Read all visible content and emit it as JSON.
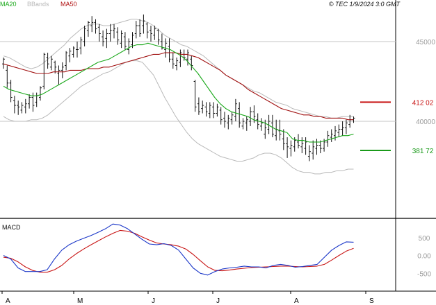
{
  "header": {
    "legend": [
      {
        "label": "MA20",
        "color": "#1aa81a"
      },
      {
        "label": "BBands",
        "color": "#b9b9b9"
      },
      {
        "label": "MA50",
        "color": "#b01010"
      }
    ],
    "copyright": "© TEC 1/9/2024 3:0 GMT"
  },
  "chart_data": [
    {
      "type": "ohlc",
      "panel": "price",
      "x_ticks": [
        "A",
        "M",
        "J",
        "J",
        "A",
        "S"
      ],
      "ylim": [
        34000,
        47000
      ],
      "y_ticks": [
        {
          "value": 40000,
          "label": "40000"
        },
        {
          "value": 45000,
          "label": "45000"
        }
      ],
      "levels": [
        {
          "value": 41202,
          "label": "412 02",
          "color": "#c81414"
        },
        {
          "value": 38172,
          "label": "381 72",
          "color": "#1a9a1a"
        }
      ],
      "series": [
        {
          "name": "MA20",
          "values": [
            42200,
            42000,
            41900,
            41800,
            41700,
            41600,
            41600,
            41700,
            41900,
            42100,
            42300,
            42500,
            42700,
            42900,
            43100,
            43300,
            43500,
            43700,
            43800,
            43900,
            44100,
            44300,
            44500,
            44700,
            44800,
            44800,
            44900,
            44800,
            44700,
            44600,
            44500,
            44300,
            44100,
            43800,
            43400,
            43000,
            42500,
            42000,
            41500,
            41100,
            40800,
            40600,
            40500,
            40400,
            40300,
            40100,
            40000,
            39900,
            39700,
            39500,
            39400,
            39300,
            38900,
            38800,
            38800,
            38700,
            38700,
            38700,
            38800,
            38900,
            39000,
            39100,
            39100,
            39200
          ]
        },
        {
          "name": "MA50",
          "values": [
            43600,
            43500,
            43400,
            43300,
            43200,
            43100,
            43000,
            43000,
            43000,
            43100,
            43100,
            43100,
            43200,
            43200,
            43200,
            43300,
            43300,
            43300,
            43400,
            43400,
            43500,
            43600,
            43700,
            43800,
            43900,
            44000,
            44100,
            44200,
            44200,
            44300,
            44300,
            44300,
            44200,
            44200,
            44100,
            44000,
            43800,
            43600,
            43400,
            43200,
            42900,
            42700,
            42500,
            42300,
            42000,
            41800,
            41600,
            41400,
            41200,
            41000,
            40800,
            40700,
            40600,
            40500,
            40400,
            40400,
            40300,
            40300,
            40200,
            40200,
            40200,
            40200,
            40100,
            40100
          ]
        },
        {
          "name": "BBands upper",
          "values": [
            44100,
            44000,
            43800,
            43600,
            43400,
            43300,
            43400,
            43600,
            43900,
            44200,
            44500,
            44800,
            45200,
            45500,
            45800,
            46000,
            46100,
            46100,
            46000,
            46000,
            46100,
            46200,
            46300,
            46400,
            46400,
            46300,
            46200,
            46000,
            45700,
            45400,
            45200,
            45000,
            44800,
            44700,
            44500,
            44300,
            44100,
            43800,
            43500,
            43200,
            42900,
            42700,
            42500,
            42300,
            42100,
            41900,
            41800,
            41600,
            41400,
            41200,
            41100,
            41000,
            40800,
            40700,
            40600,
            40500,
            40400,
            40300,
            40300,
            40200,
            40200,
            40300,
            40300,
            40300
          ]
        },
        {
          "name": "BBands lower",
          "values": [
            40300,
            40100,
            40000,
            40000,
            40000,
            40100,
            40100,
            40200,
            40400,
            40700,
            41000,
            41300,
            41600,
            41900,
            42200,
            42400,
            42600,
            42800,
            43000,
            43100,
            43300,
            43500,
            43700,
            43800,
            43800,
            43700,
            43300,
            42900,
            42200,
            41500,
            40900,
            40300,
            39800,
            39300,
            38900,
            38600,
            38400,
            38200,
            38000,
            37800,
            37700,
            37600,
            37500,
            37500,
            37600,
            37700,
            37900,
            38000,
            38000,
            37900,
            37700,
            37400,
            37100,
            36900,
            36800,
            36800,
            36700,
            36700,
            36800,
            36800,
            36900,
            36900,
            37000,
            37000
          ]
        }
      ],
      "ohlc": [
        [
          43600,
          44000,
          43300,
          43900
        ],
        [
          43200,
          43500,
          42100,
          42400
        ],
        [
          42400,
          42600,
          41200,
          41500
        ],
        [
          41300,
          41600,
          40500,
          41000
        ],
        [
          41000,
          41300,
          40400,
          40900
        ],
        [
          40700,
          41200,
          40500,
          41000
        ],
        [
          40900,
          41400,
          40500,
          41100
        ],
        [
          41100,
          41700,
          40800,
          41500
        ],
        [
          41500,
          41800,
          40600,
          41000
        ],
        [
          41200,
          41800,
          40900,
          41600
        ],
        [
          41500,
          42200,
          41300,
          42100
        ],
        [
          42200,
          44300,
          42000,
          44200
        ],
        [
          44000,
          44300,
          43300,
          43600
        ],
        [
          43400,
          44100,
          43200,
          43900
        ],
        [
          43700,
          43800,
          43000,
          43400
        ],
        [
          43000,
          43500,
          42300,
          43200
        ],
        [
          43200,
          43700,
          42700,
          43400
        ],
        [
          43500,
          44400,
          43200,
          44300
        ],
        [
          44100,
          44600,
          43700,
          44400
        ],
        [
          44200,
          44700,
          44000,
          44600
        ],
        [
          44500,
          45000,
          44000,
          44500
        ],
        [
          44600,
          45300,
          44200,
          45100
        ],
        [
          45000,
          46000,
          44700,
          45800
        ],
        [
          45700,
          46300,
          45300,
          46200
        ],
        [
          46000,
          46600,
          45600,
          46200
        ],
        [
          46200,
          46400,
          45500,
          45800
        ],
        [
          45900,
          46100,
          45000,
          45500
        ],
        [
          45300,
          45700,
          44700,
          45000
        ],
        [
          45200,
          45800,
          44600,
          45500
        ],
        [
          45500,
          46100,
          45000,
          45700
        ],
        [
          45700,
          46100,
          45200,
          45800
        ],
        [
          45600,
          45900,
          44800,
          45100
        ],
        [
          44900,
          45700,
          44600,
          45500
        ],
        [
          45300,
          45600,
          44500,
          44700
        ],
        [
          44500,
          45200,
          44200,
          45000
        ],
        [
          44800,
          45600,
          44600,
          45400
        ],
        [
          45500,
          46300,
          45200,
          46000
        ],
        [
          46000,
          46400,
          45300,
          45500
        ],
        [
          46000,
          46700,
          45500,
          46300
        ],
        [
          46100,
          46200,
          45200,
          45600
        ],
        [
          45700,
          46000,
          45000,
          45500
        ],
        [
          45400,
          46000,
          45100,
          45800
        ],
        [
          45700,
          45800,
          44800,
          45100
        ],
        [
          45000,
          45500,
          44500,
          44600
        ],
        [
          44500,
          45200,
          44000,
          44900
        ],
        [
          44700,
          45200,
          43700,
          43900
        ],
        [
          43900,
          44300,
          43300,
          43600
        ],
        [
          43500,
          44000,
          43200,
          43800
        ],
        [
          43700,
          44500,
          43400,
          44300
        ],
        [
          44200,
          44500,
          43800,
          44000
        ],
        [
          43900,
          44500,
          43500,
          44300
        ],
        [
          43900,
          44100,
          43200,
          43500
        ],
        [
          42500,
          42600,
          40600,
          40900
        ],
        [
          41100,
          41500,
          40400,
          40600
        ],
        [
          40800,
          41300,
          40500,
          41000
        ],
        [
          40900,
          41200,
          40300,
          40600
        ],
        [
          40500,
          41200,
          40200,
          41000
        ],
        [
          40900,
          41200,
          40200,
          40500
        ],
        [
          40500,
          41100,
          40300,
          40900
        ],
        [
          40700,
          40900,
          39800,
          40100
        ],
        [
          40200,
          40600,
          39600,
          40000
        ],
        [
          39900,
          40400,
          39500,
          40200
        ],
        [
          40100,
          40600,
          39800,
          40400
        ],
        [
          40300,
          41400,
          40000,
          41100
        ],
        [
          40800,
          41200,
          39600,
          39900
        ],
        [
          39700,
          40200,
          39500,
          40000
        ],
        [
          39900,
          40300,
          39400,
          40100
        ],
        [
          40000,
          40900,
          39700,
          40600
        ],
        [
          40600,
          41000,
          39900,
          40300
        ],
        [
          40100,
          40500,
          39500,
          39800
        ],
        [
          39700,
          40200,
          39400,
          39900
        ],
        [
          39200,
          40100,
          38900,
          39600
        ],
        [
          39500,
          40400,
          39200,
          40000
        ],
        [
          39900,
          40400,
          39000,
          39200
        ],
        [
          39100,
          40100,
          38800,
          39500
        ],
        [
          39400,
          40100,
          38800,
          39200
        ],
        [
          38900,
          39500,
          38200,
          38600
        ],
        [
          38600,
          39000,
          37700,
          38400
        ],
        [
          38300,
          38800,
          37800,
          38500
        ],
        [
          38400,
          39000,
          38100,
          38800
        ],
        [
          38700,
          39200,
          38300,
          38500
        ],
        [
          38400,
          39000,
          38000,
          38600
        ],
        [
          38300,
          39000,
          37900,
          38700
        ],
        [
          37800,
          38500,
          37500,
          38100
        ],
        [
          38000,
          38800,
          37600,
          38400
        ],
        [
          38300,
          38900,
          37900,
          38500
        ],
        [
          38500,
          38800,
          38000,
          38300
        ],
        [
          38300,
          38900,
          38100,
          38700
        ],
        [
          38700,
          39400,
          38400,
          39100
        ],
        [
          39000,
          39500,
          38700,
          39200
        ],
        [
          39100,
          39700,
          38800,
          39400
        ],
        [
          39300,
          39800,
          39000,
          39500
        ],
        [
          39500,
          40000,
          39100,
          39600
        ],
        [
          39600,
          40100,
          39200,
          39900
        ],
        [
          39800,
          40400,
          39600,
          40100
        ],
        [
          40100,
          40300,
          39900,
          40200
        ]
      ]
    },
    {
      "type": "line",
      "panel": "indicator",
      "title": "MACD",
      "ylim": [
        -1000,
        1000
      ],
      "y_ticks": [
        {
          "value": 500,
          "label": "500"
        },
        {
          "value": 0,
          "label": "0.00"
        },
        {
          "value": -500,
          "label": "-500"
        }
      ],
      "series": [
        {
          "name": "MACD",
          "color": "#1a36c8",
          "values": [
            0,
            -100,
            -350,
            -450,
            -450,
            -450,
            -400,
            -100,
            150,
            300,
            400,
            480,
            560,
            650,
            750,
            880,
            850,
            750,
            600,
            450,
            320,
            300,
            330,
            280,
            150,
            -100,
            -350,
            -500,
            -550,
            -450,
            -380,
            -350,
            -330,
            -300,
            -320,
            -320,
            -350,
            -280,
            -250,
            -280,
            -330,
            -310,
            -280,
            -250,
            -50,
            150,
            280,
            380,
            370
          ]
        },
        {
          "name": "Signal",
          "color": "#c81414",
          "values": [
            -50,
            -80,
            -180,
            -320,
            -420,
            -470,
            -470,
            -400,
            -280,
            -100,
            50,
            180,
            300,
            410,
            520,
            620,
            700,
            680,
            620,
            520,
            430,
            350,
            320,
            300,
            260,
            180,
            30,
            -150,
            -320,
            -420,
            -430,
            -410,
            -380,
            -360,
            -340,
            -330,
            -320,
            -310,
            -300,
            -300,
            -310,
            -320,
            -310,
            -300,
            -250,
            -130,
            0,
            120,
            200
          ]
        }
      ]
    }
  ]
}
